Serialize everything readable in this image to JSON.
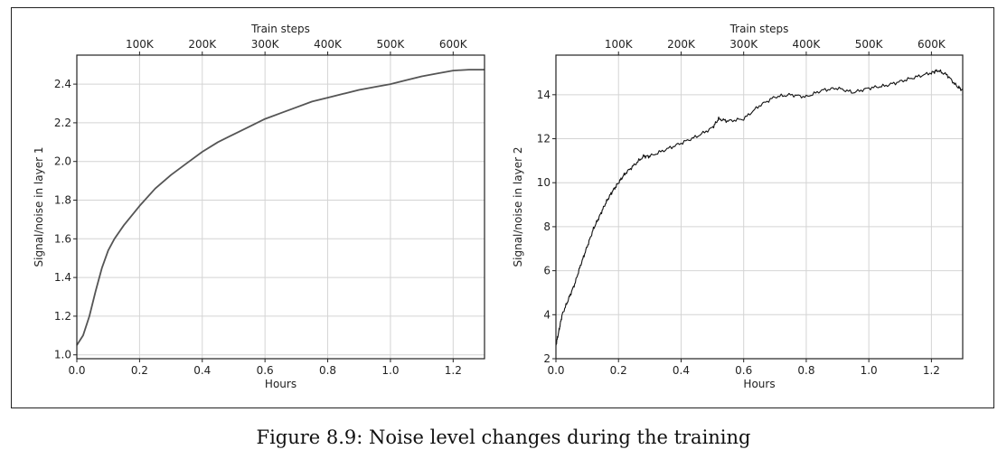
{
  "caption": "Figure 8.9: Noise level changes during the training",
  "chart_data": [
    {
      "type": "line",
      "xlabel": "Hours",
      "ylabel": "Signal/noise in layer 1",
      "top_xlabel": "Train steps",
      "xlim": [
        0.0,
        1.3
      ],
      "ylim": [
        0.98,
        2.55
      ],
      "xticks": [
        0.0,
        0.2,
        0.4,
        0.6,
        0.8,
        1.0,
        1.2
      ],
      "xtick_labels": [
        "0.0",
        "0.2",
        "0.4",
        "0.6",
        "0.8",
        "1.0",
        "1.2"
      ],
      "yticks": [
        1.0,
        1.2,
        1.4,
        1.6,
        1.8,
        2.0,
        2.2,
        2.4
      ],
      "ytick_labels": [
        "1.0",
        "1.2",
        "1.4",
        "1.6",
        "1.8",
        "2.0",
        "2.2",
        "2.4"
      ],
      "top_ticks": [
        0.2,
        0.4,
        0.6,
        0.8,
        1.0,
        1.2
      ],
      "top_tick_labels": [
        "100K",
        "200K",
        "300K",
        "400K",
        "500K",
        "600K"
      ],
      "grid": true,
      "line_color": "#555555",
      "series": [
        {
          "x": [
            0.0,
            0.02,
            0.04,
            0.06,
            0.08,
            0.1,
            0.12,
            0.15,
            0.2,
            0.25,
            0.3,
            0.35,
            0.4,
            0.45,
            0.5,
            0.55,
            0.6,
            0.65,
            0.7,
            0.75,
            0.8,
            0.85,
            0.9,
            0.95,
            1.0,
            1.05,
            1.1,
            1.15,
            1.2,
            1.25,
            1.3
          ],
          "y": [
            1.05,
            1.1,
            1.2,
            1.33,
            1.45,
            1.54,
            1.6,
            1.67,
            1.77,
            1.86,
            1.93,
            1.99,
            2.05,
            2.1,
            2.14,
            2.18,
            2.22,
            2.25,
            2.28,
            2.31,
            2.33,
            2.35,
            2.37,
            2.385,
            2.4,
            2.42,
            2.44,
            2.455,
            2.47,
            2.475,
            2.475
          ]
        }
      ]
    },
    {
      "type": "line",
      "xlabel": "Hours",
      "ylabel": "Signal/noise in layer 2",
      "top_xlabel": "Train steps",
      "xlim": [
        0.0,
        1.3
      ],
      "ylim": [
        2.0,
        15.8
      ],
      "xticks": [
        0.0,
        0.2,
        0.4,
        0.6,
        0.8,
        1.0,
        1.2
      ],
      "xtick_labels": [
        "0.0",
        "0.2",
        "0.4",
        "0.6",
        "0.8",
        "1.0",
        "1.2"
      ],
      "yticks": [
        2,
        4,
        6,
        8,
        10,
        12,
        14
      ],
      "ytick_labels": [
        "2",
        "4",
        "6",
        "8",
        "10",
        "12",
        "14"
      ],
      "top_ticks": [
        0.2,
        0.4,
        0.6,
        0.8,
        1.0,
        1.2
      ],
      "top_tick_labels": [
        "100K",
        "200K",
        "300K",
        "400K",
        "500K",
        "600K"
      ],
      "grid": true,
      "line_color": "#111111",
      "series": [
        {
          "x": [
            0.0,
            0.01,
            0.02,
            0.04,
            0.06,
            0.08,
            0.1,
            0.12,
            0.14,
            0.16,
            0.18,
            0.2,
            0.22,
            0.25,
            0.28,
            0.3,
            0.35,
            0.4,
            0.45,
            0.5,
            0.52,
            0.55,
            0.6,
            0.65,
            0.7,
            0.75,
            0.8,
            0.85,
            0.9,
            0.95,
            1.0,
            1.05,
            1.1,
            1.15,
            1.2,
            1.22,
            1.25,
            1.28,
            1.3
          ],
          "y": [
            2.6,
            3.3,
            4.0,
            4.7,
            5.4,
            6.3,
            7.1,
            7.9,
            8.5,
            9.1,
            9.6,
            10.0,
            10.4,
            10.8,
            11.2,
            11.2,
            11.5,
            11.8,
            12.1,
            12.5,
            12.9,
            12.8,
            12.9,
            13.5,
            13.9,
            14.0,
            13.9,
            14.2,
            14.3,
            14.1,
            14.3,
            14.4,
            14.6,
            14.8,
            15.0,
            15.1,
            14.9,
            14.4,
            14.2
          ]
        }
      ]
    }
  ]
}
